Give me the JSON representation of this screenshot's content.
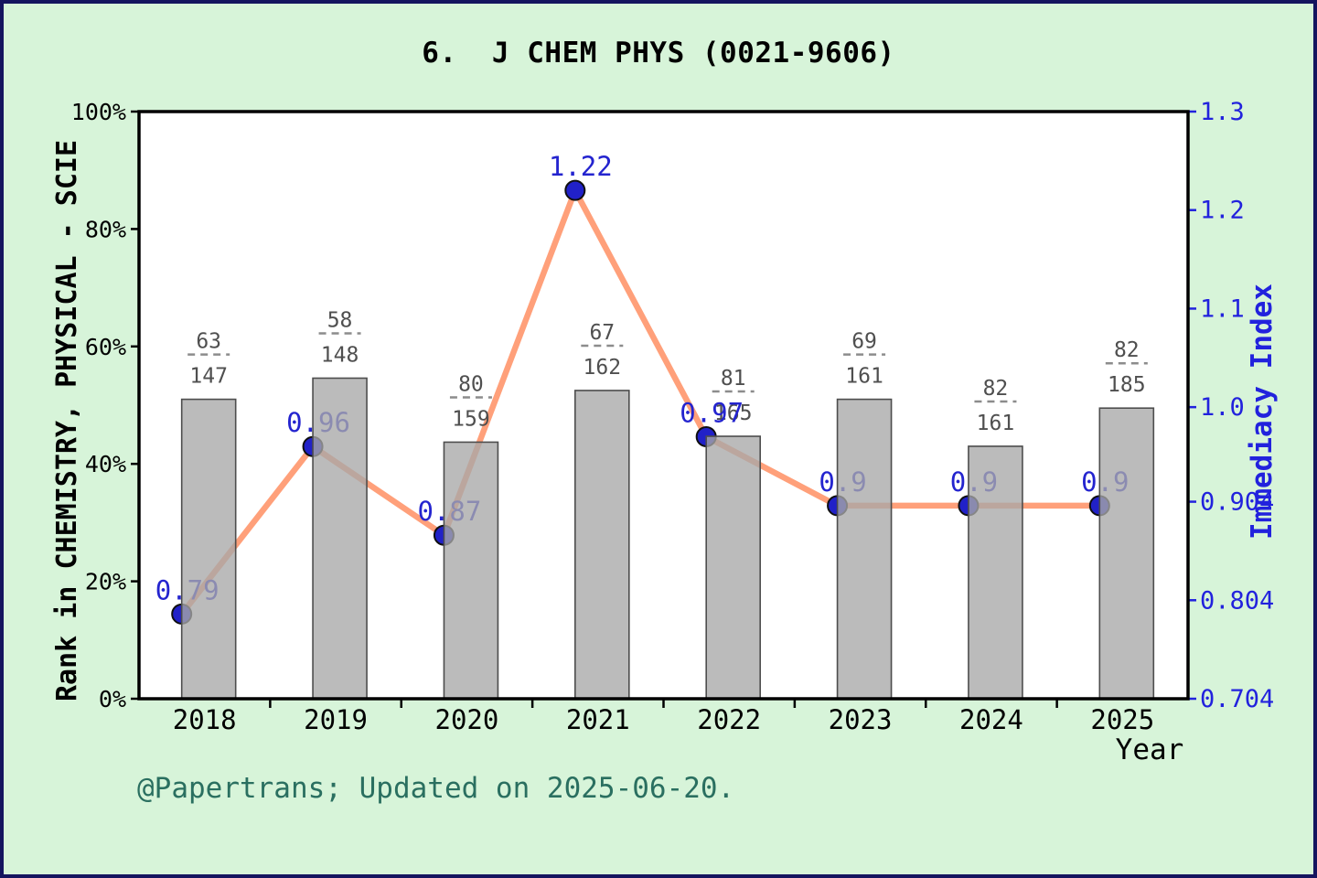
{
  "title": "6.  J CHEM PHYS (0021-9606)",
  "footer": "@Papertrans; Updated on 2025-06-20.",
  "axes": {
    "left_label": "Rank in CHEMISTRY, PHYSICAL - SCIE",
    "right_label": "Immediacy Index",
    "x_label": "Year"
  },
  "chart_data": {
    "type": "bar+line",
    "title": "6. J CHEM PHYS (0021-9606)",
    "categories": [
      "2018",
      "2019",
      "2020",
      "2021",
      "2022",
      "2023",
      "2024",
      "2025"
    ],
    "series": [
      {
        "name": "Rank in CHEMISTRY, PHYSICAL - SCIE",
        "type": "bar",
        "axis": "left",
        "unit": "percent",
        "values": [
          51.0,
          54.6,
          43.7,
          52.5,
          44.7,
          51.0,
          43.0,
          49.5
        ],
        "rank_labels": [
          {
            "numerator": "63",
            "denominator": "147"
          },
          {
            "numerator": "58",
            "denominator": "148"
          },
          {
            "numerator": "80",
            "denominator": "159"
          },
          {
            "numerator": "67",
            "denominator": "162"
          },
          {
            "numerator": "81",
            "denominator": "165"
          },
          {
            "numerator": "69",
            "denominator": "161"
          },
          {
            "numerator": "82",
            "denominator": "161"
          },
          {
            "numerator": "82",
            "denominator": "185"
          }
        ]
      },
      {
        "name": "Immediacy Index",
        "type": "line",
        "axis": "right",
        "values": [
          0.79,
          0.96,
          0.87,
          1.22,
          0.97,
          0.9,
          0.9,
          0.9
        ],
        "point_labels": [
          "0.79",
          "0.96",
          "0.87",
          "1.22",
          "0.97",
          "0.9",
          "0.9",
          "0.9"
        ]
      }
    ],
    "left_ylim": [
      0,
      100
    ],
    "right_ylim": [
      0.704,
      1.3
    ],
    "left_ticks": {
      "values": [
        0,
        20,
        40,
        60,
        80,
        100
      ],
      "labels": [
        "0%",
        "20%",
        "40%",
        "60%",
        "80%",
        "100%"
      ]
    },
    "right_ticks": {
      "values": [
        0.704,
        0.804,
        0.904,
        1.0,
        1.1,
        1.2,
        1.3
      ],
      "labels": [
        "0.704",
        "0.804",
        "0.904",
        "1.0",
        "1.1",
        "1.2",
        "1.3"
      ]
    },
    "grid": false,
    "legend": false
  },
  "colors": {
    "background": "#d7f4d9",
    "frame_border": "#14145e",
    "plot_bg": "#ffffff",
    "axis_frame": "#000000",
    "bar_fill": "#a8a8a8",
    "bar_opacity": 0.78,
    "bar_edge": "#4d4d4d",
    "line": "#ffa07a",
    "marker_fill": "#2121c8",
    "marker_edge": "#101010",
    "value_label": "#2424cf",
    "right_axis": "#2222dd",
    "fraction_text": "#4f4f4f",
    "fraction_dash": "#8c8c8c",
    "footer_text": "#2a6f60",
    "text": "#000000"
  }
}
